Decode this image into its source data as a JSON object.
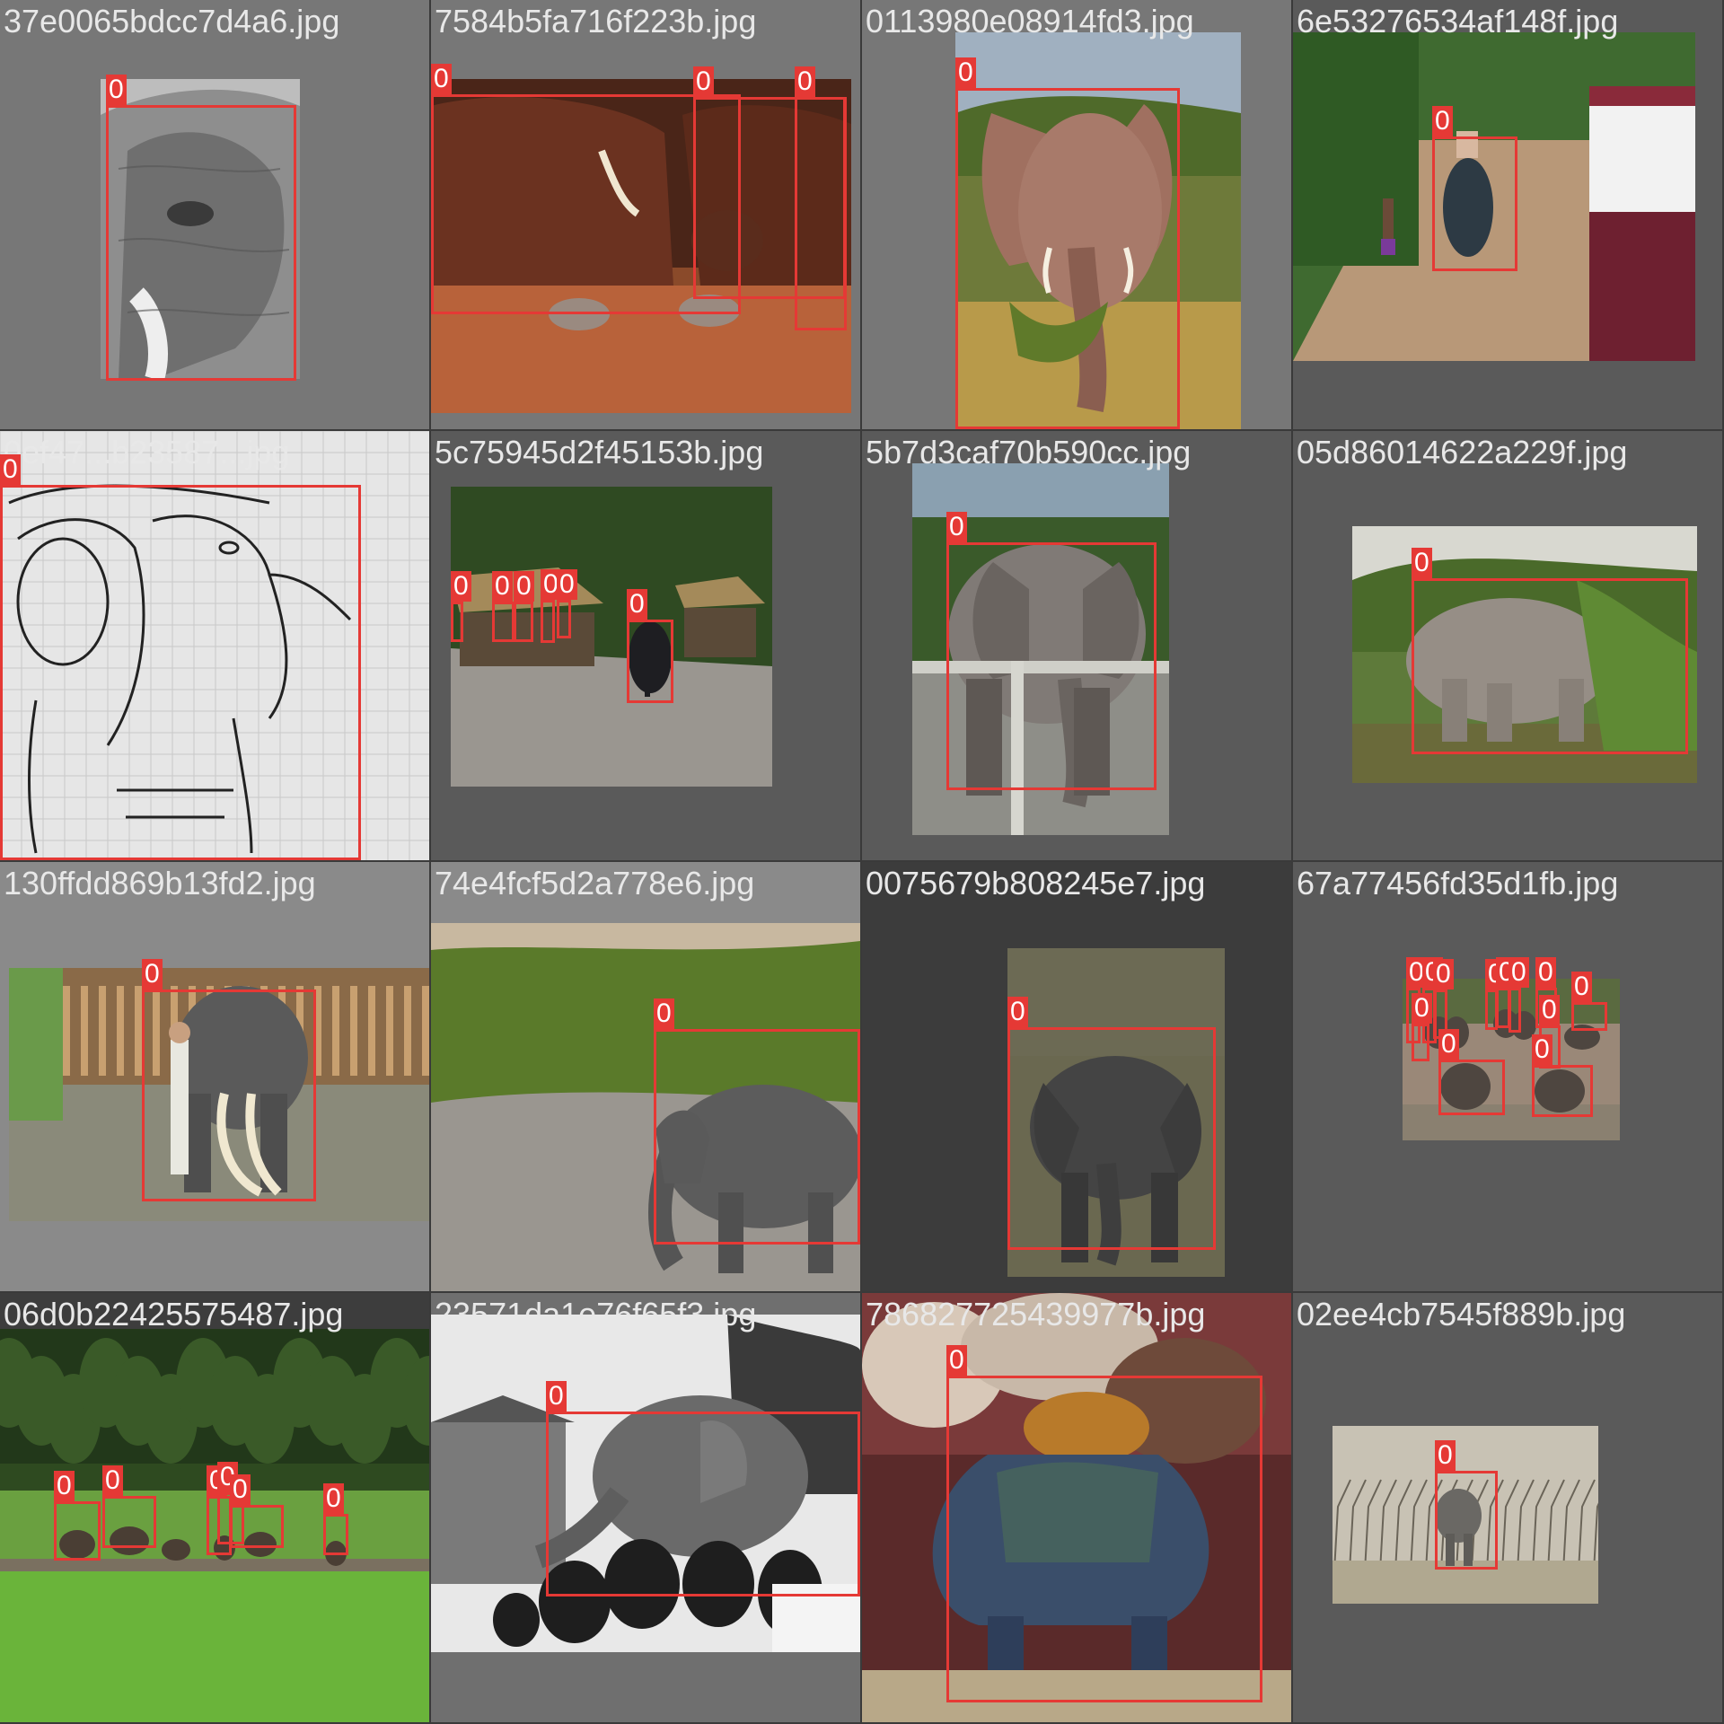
{
  "colors": {
    "box": "#e53935",
    "label_text": "#ffffff",
    "filename_text": "#e8e8e8"
  },
  "tiles": [
    {
      "filename": "37e0065bdcc7d4a6.jpg",
      "labels": [
        "0"
      ]
    },
    {
      "filename": "7584b5fa716f223b.jpg",
      "labels": [
        "0",
        "0",
        "0"
      ]
    },
    {
      "filename": "0113980e08914fd3.jpg",
      "labels": [
        "0"
      ]
    },
    {
      "filename": "6e53276534af148f.jpg",
      "labels": [
        "0"
      ]
    },
    {
      "filename": "0ef47...b23587...jpg",
      "labels": [
        "0"
      ]
    },
    {
      "filename": "5c75945d2f45153b.jpg",
      "labels": [
        "0",
        "0",
        "0",
        "0",
        "0",
        "0"
      ]
    },
    {
      "filename": "5b7d3caf70b590cc.jpg",
      "labels": [
        "0"
      ]
    },
    {
      "filename": "05d86014622a229f.jpg",
      "labels": [
        "0"
      ]
    },
    {
      "filename": "130ffdd869b13fd2.jpg",
      "labels": [
        "0"
      ]
    },
    {
      "filename": "74e4fcf5d2a778e6.jpg",
      "labels": [
        "0"
      ]
    },
    {
      "filename": "0075679b808245e7.jpg",
      "labels": [
        "0"
      ]
    },
    {
      "filename": "67a77456fd35d1fb.jpg",
      "labels": [
        "0",
        "0",
        "0",
        "0",
        "0",
        "0",
        "0",
        "0",
        "0",
        "0",
        "0",
        "0"
      ]
    },
    {
      "filename": "06d0b22425575487.jpg",
      "labels": [
        "0",
        "0",
        "0",
        "0",
        "0",
        "0"
      ]
    },
    {
      "filename": "23571da1e76f65f3.jpg",
      "labels": [
        "0"
      ]
    },
    {
      "filename": "786827725439977b.jpg",
      "labels": [
        "0"
      ]
    },
    {
      "filename": "02ee4cb7545f889b.jpg",
      "labels": [
        "0"
      ]
    }
  ]
}
